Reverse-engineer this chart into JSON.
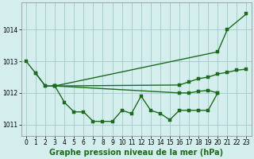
{
  "line_color": "#1a6b1a",
  "marker": "s",
  "markersize": 2.5,
  "linewidth": 1.0,
  "background_color": "#d4eeed",
  "grid_color": "#a0c8c8",
  "title": "Graphe pression niveau de la mer (hPa)",
  "xlim": [
    -0.5,
    23.5
  ],
  "ylim": [
    1010.65,
    1014.85
  ],
  "yticks": [
    1011,
    1012,
    1013,
    1014
  ],
  "xticks": [
    0,
    1,
    2,
    3,
    4,
    5,
    6,
    7,
    8,
    9,
    10,
    11,
    12,
    13,
    14,
    15,
    16,
    17,
    18,
    19,
    20,
    21,
    22,
    23
  ],
  "title_fontsize": 7.0,
  "tick_fontsize": 5.5,
  "s1_x": [
    0,
    1,
    2,
    3,
    20,
    21,
    23
  ],
  "s1_y": [
    1013.0,
    1012.62,
    1012.22,
    1012.22,
    1013.3,
    1014.0,
    1014.5
  ],
  "s2_x": [
    1,
    2,
    3,
    16,
    17,
    18,
    19,
    20,
    21,
    22,
    23
  ],
  "s2_y": [
    1012.62,
    1012.22,
    1012.22,
    1012.25,
    1012.35,
    1012.45,
    1012.5,
    1012.6,
    1012.65,
    1012.72,
    1012.75
  ],
  "s3_x": [
    3,
    16,
    17,
    18,
    19,
    20
  ],
  "s3_y": [
    1012.22,
    1012.0,
    1012.0,
    1012.05,
    1012.08,
    1012.0
  ],
  "s4_x": [
    3,
    4,
    5,
    6,
    7,
    8,
    9,
    10,
    11,
    12,
    13,
    14,
    15,
    16,
    17,
    18,
    19,
    20
  ],
  "s4_y": [
    1012.22,
    1011.7,
    1011.4,
    1011.4,
    1011.1,
    1011.1,
    1011.1,
    1011.45,
    1011.35,
    1011.9,
    1011.45,
    1011.35,
    1011.15,
    1011.45,
    1011.45,
    1011.45,
    1011.45,
    1012.0
  ]
}
